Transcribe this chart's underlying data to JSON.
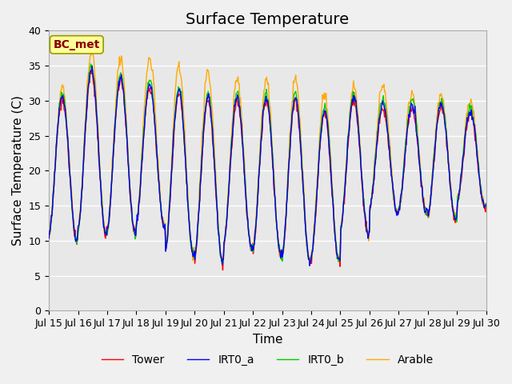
{
  "title": "Surface Temperature",
  "ylabel": "Surface Temperature (C)",
  "xlabel": "Time",
  "annotation": "BC_met",
  "ylim": [
    0,
    40
  ],
  "yticks": [
    0,
    5,
    10,
    15,
    20,
    25,
    30,
    35,
    40
  ],
  "series": [
    "Tower",
    "IRT0_a",
    "IRT0_b",
    "Arable"
  ],
  "colors": {
    "Tower": "#ff0000",
    "IRT0_a": "#0000ff",
    "IRT0_b": "#00cc00",
    "Arable": "#ffaa00"
  },
  "x_labels": [
    "Jul 15",
    "Jul 16",
    "Jul 17",
    "Jul 18",
    "Jul 19",
    "Jul 20",
    "Jul 21",
    "Jul 22",
    "Jul 23",
    "Jul 24",
    "Jul 25",
    "Jul 26",
    "Jul 27",
    "Jul 28",
    "Jul 29",
    "Jul 30"
  ],
  "background_color": "#e8e8e8",
  "grid_color": "#ffffff",
  "title_fontsize": 14,
  "label_fontsize": 11,
  "tick_fontsize": 9,
  "legend_fontsize": 10
}
